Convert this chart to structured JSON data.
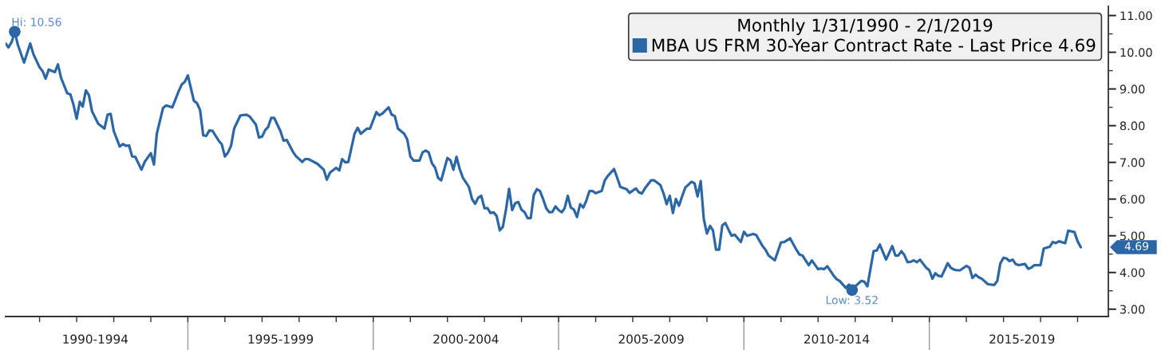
{
  "chart_data": {
    "type": "line",
    "legend_title": "Monthly 1/31/1990 - 2/1/2019",
    "legend": "top right",
    "line_style": "solid",
    "xlim": [
      "1990-01-31",
      "2019-10-31"
    ],
    "ylim": [
      2.8,
      11.25
    ],
    "xticks": [
      {
        "value": "1991",
        "label": null
      },
      {
        "value": "1992",
        "label": null
      },
      {
        "value": "1992-07-02",
        "label": "1990-1994"
      },
      {
        "value": "1993",
        "label": null
      },
      {
        "value": "1994",
        "label": null
      },
      {
        "value": "1995",
        "label": null
      },
      {
        "value": "1996",
        "label": null
      },
      {
        "value": "1997",
        "label": null
      },
      {
        "value": "1997-07-02",
        "label": "1995-1999"
      },
      {
        "value": "1998",
        "label": null
      },
      {
        "value": "1999",
        "label": null
      },
      {
        "value": "2000",
        "label": null
      },
      {
        "value": "2001",
        "label": null
      },
      {
        "value": "2002",
        "label": null
      },
      {
        "value": "2002-07-02",
        "label": "2000-2004"
      },
      {
        "value": "2003",
        "label": null
      },
      {
        "value": "2004",
        "label": null
      },
      {
        "value": "2005",
        "label": null
      },
      {
        "value": "2006",
        "label": null
      },
      {
        "value": "2007",
        "label": null
      },
      {
        "value": "2007-07-02",
        "label": "2005-2009"
      },
      {
        "value": "2008",
        "label": null
      },
      {
        "value": "2009",
        "label": null
      },
      {
        "value": "2010",
        "label": null
      },
      {
        "value": "2011",
        "label": null
      },
      {
        "value": "2012",
        "label": null
      },
      {
        "value": "2012-07-02",
        "label": "2010-2014"
      },
      {
        "value": "2013",
        "label": null
      },
      {
        "value": "2014",
        "label": null
      },
      {
        "value": "2015",
        "label": null
      },
      {
        "value": "2016",
        "label": null
      },
      {
        "value": "2017",
        "label": null
      },
      {
        "value": "2017-07-02",
        "label": "2015-2019"
      },
      {
        "value": "2018",
        "label": null
      },
      {
        "value": "2019",
        "label": null
      }
    ],
    "yticks": [
      {
        "value": 3,
        "label": "3.00"
      },
      {
        "value": 3.5,
        "label": null
      },
      {
        "value": 4,
        "label": "4.00"
      },
      {
        "value": 4.5,
        "label": null
      },
      {
        "value": 5,
        "label": "5.00"
      },
      {
        "value": 5.5,
        "label": null
      },
      {
        "value": 6,
        "label": "6.00"
      },
      {
        "value": 6.5,
        "label": null
      },
      {
        "value": 7,
        "label": "7.00"
      },
      {
        "value": 7.5,
        "label": null
      },
      {
        "value": 8,
        "label": "8.00"
      },
      {
        "value": 8.5,
        "label": null
      },
      {
        "value": 9,
        "label": "9.00"
      },
      {
        "value": 9.5,
        "label": null
      },
      {
        "value": 10,
        "label": "10.00"
      },
      {
        "value": 10.5,
        "label": null
      },
      {
        "value": 11,
        "label": "11.00"
      }
    ],
    "annotations": [
      {
        "text": "Hi: 10.56",
        "x": "1990-05",
        "y": 10.56
      },
      {
        "text": "Low: 3.52",
        "x": "2012-12",
        "y": 3.52
      },
      "4.69"
    ],
    "series": [
      {
        "name": "MBA US FRM 30-Year Contract Rate - Last Price 4.69",
        "color": "#2b67a5",
        "x": [
          "1990-01-31",
          "1990-03",
          "1990-04",
          "1990-05",
          "1990-06",
          "1990-08",
          "1990-10",
          "1990-11",
          "1991-01",
          "1991-02",
          "1991-03",
          "1991-04",
          "1991-06",
          "1991-07",
          "1991-08",
          "1991-10",
          "1991-11",
          "1991-12",
          "1992-01",
          "1992-02",
          "1992-03",
          "1992-04",
          "1992-05",
          "1992-06",
          "1992-08",
          "1992-10",
          "1992-11",
          "1992-12",
          "1993-01",
          "1993-03",
          "1993-04",
          "1993-05",
          "1993-06",
          "1993-07",
          "1993-08",
          "1993-10",
          "1993-11",
          "1994-01",
          "1994-02",
          "1994-03",
          "1994-05",
          "1994-06",
          "1994-08",
          "1994-10",
          "1994-11",
          "1994-12",
          "1995-01",
          "1995-03",
          "1995-04",
          "1995-05",
          "1995-06",
          "1995-07",
          "1995-08",
          "1995-09",
          "1995-11",
          "1995-12",
          "1996-01",
          "1996-02",
          "1996-03",
          "1996-04",
          "1996-06",
          "1996-08",
          "1996-09",
          "1996-11",
          "1996-12",
          "1997-01",
          "1997-02",
          "1997-03",
          "1997-04",
          "1997-05",
          "1997-07",
          "1997-08",
          "1997-09",
          "1997-11",
          "1997-12",
          "1998-02",
          "1998-03",
          "1998-04",
          "1998-05",
          "1998-07",
          "1998-09",
          "1998-10",
          "1998-11",
          "1999-01",
          "1999-02",
          "1999-03",
          "1999-04",
          "1999-05",
          "1999-07",
          "1999-08",
          "1999-09",
          "1999-11",
          "1999-12",
          "2000-02",
          "2000-03",
          "2000-04",
          "2000-06",
          "2000-07",
          "2000-08",
          "2000-09",
          "2000-11",
          "2000-12",
          "2001-01",
          "2001-02",
          "2001-04",
          "2001-05",
          "2001-06",
          "2001-07",
          "2001-08",
          "2001-09",
          "2001-10",
          "2001-11",
          "2002-01",
          "2002-02",
          "2002-03",
          "2002-04",
          "2002-05",
          "2002-06",
          "2002-08",
          "2002-09",
          "2002-10",
          "2002-11",
          "2002-12",
          "2003-01",
          "2003-02",
          "2003-03",
          "2003-04",
          "2003-05",
          "2003-06",
          "2003-07",
          "2003-08",
          "2003-09",
          "2003-10",
          "2003-11",
          "2003-12",
          "2004-01",
          "2004-02",
          "2004-03",
          "2004-04",
          "2004-05",
          "2004-06",
          "2004-07",
          "2004-08",
          "2004-09",
          "2004-10",
          "2004-11",
          "2004-12",
          "2005-01",
          "2005-02",
          "2005-03",
          "2005-04",
          "2005-05",
          "2005-06",
          "2005-07",
          "2005-08",
          "2005-09",
          "2005-10",
          "2005-11",
          "2005-12",
          "2006-01",
          "2006-03",
          "2006-04",
          "2006-05",
          "2006-07",
          "2006-08",
          "2006-09",
          "2006-11",
          "2006-12",
          "2007-02",
          "2007-03",
          "2007-04",
          "2007-05",
          "2007-07",
          "2007-08",
          "2007-10",
          "2007-11",
          "2007-12",
          "2008-01",
          "2008-02",
          "2008-03",
          "2008-04",
          "2008-05",
          "2008-06",
          "2008-08",
          "2008-09",
          "2008-10",
          "2008-11",
          "2008-12",
          "2009-01",
          "2009-02",
          "2009-03",
          "2009-04",
          "2009-05",
          "2009-06",
          "2009-07",
          "2009-08",
          "2009-09",
          "2009-10",
          "2009-12",
          "2010-01",
          "2010-02",
          "2010-04",
          "2010-05",
          "2010-07",
          "2010-08",
          "2010-09",
          "2010-11",
          "2011-01",
          "2011-02",
          "2011-04",
          "2011-06",
          "2011-07",
          "2011-08",
          "2011-10",
          "2011-11",
          "2012-01",
          "2012-02",
          "2012-03",
          "2012-04",
          "2012-06",
          "2012-07",
          "2012-08",
          "2012-10",
          "2012-11",
          "2012-12",
          "2013-01",
          "2013-03",
          "2013-04",
          "2013-05",
          "2013-07",
          "2013-08",
          "2013-09",
          "2013-11",
          "2014-01",
          "2014-02",
          "2014-03",
          "2014-04",
          "2014-05",
          "2014-06",
          "2014-07",
          "2014-08",
          "2014-09",
          "2014-10",
          "2014-12",
          "2015-01",
          "2015-02",
          "2015-03",
          "2015-04",
          "2015-05",
          "2015-07",
          "2015-08",
          "2015-09",
          "2015-10",
          "2015-11",
          "2016-01",
          "2016-02",
          "2016-03",
          "2016-04",
          "2016-05",
          "2016-06",
          "2016-08",
          "2016-10",
          "2016-11",
          "2016-12",
          "2017-01",
          "2017-02",
          "2017-03",
          "2017-04",
          "2017-05",
          "2017-06",
          "2017-08",
          "2017-09",
          "2017-10",
          "2017-11",
          "2018-01",
          "2018-02",
          "2018-04",
          "2018-05",
          "2018-06",
          "2018-07",
          "2018-09",
          "2018-10",
          "2018-12",
          "2019-01",
          "2019-02-01"
        ],
        "values": [
          10.24,
          10.13,
          10.28,
          10.56,
          10.2,
          9.72,
          10.24,
          9.95,
          9.59,
          9.48,
          9.28,
          9.53,
          9.46,
          9.67,
          9.3,
          8.88,
          8.85,
          8.57,
          8.19,
          8.65,
          8.52,
          8.96,
          8.83,
          8.39,
          8.05,
          7.92,
          8.3,
          8.32,
          7.85,
          7.43,
          7.5,
          7.45,
          7.46,
          7.16,
          7.15,
          6.8,
          7.01,
          7.25,
          6.94,
          7.78,
          8.48,
          8.55,
          8.5,
          8.93,
          9.12,
          9.19,
          9.37,
          8.68,
          8.61,
          8.43,
          7.74,
          7.72,
          7.87,
          7.86,
          7.59,
          7.49,
          7.16,
          7.27,
          7.45,
          7.92,
          8.28,
          8.3,
          8.25,
          8.03,
          7.68,
          7.7,
          7.88,
          7.96,
          8.21,
          8.21,
          7.85,
          7.59,
          7.61,
          7.29,
          7.17,
          7.01,
          7.09,
          7.09,
          7.05,
          6.96,
          6.8,
          6.53,
          6.72,
          6.85,
          6.78,
          7.09,
          7.0,
          7.01,
          7.78,
          7.94,
          7.78,
          7.92,
          7.92,
          8.37,
          8.28,
          8.33,
          8.5,
          8.3,
          8.26,
          7.92,
          7.78,
          7.63,
          7.16,
          7.05,
          7.05,
          7.27,
          7.32,
          7.27,
          6.98,
          6.86,
          6.58,
          6.51,
          7.12,
          7.05,
          6.8,
          7.15,
          6.83,
          6.59,
          6.33,
          6.0,
          5.87,
          6.04,
          6.09,
          5.75,
          5.75,
          5.62,
          5.64,
          5.54,
          5.15,
          5.24,
          5.71,
          6.28,
          5.7,
          5.89,
          5.92,
          5.71,
          5.64,
          5.48,
          5.48,
          6.11,
          6.27,
          6.22,
          6.0,
          5.75,
          5.64,
          5.65,
          5.8,
          5.7,
          5.64,
          5.75,
          6.09,
          5.77,
          5.71,
          5.51,
          5.86,
          5.77,
          5.96,
          6.22,
          6.22,
          6.16,
          6.22,
          6.51,
          6.63,
          6.82,
          6.58,
          6.33,
          6.27,
          6.17,
          6.29,
          6.19,
          6.15,
          6.29,
          6.51,
          6.51,
          6.38,
          6.15,
          5.86,
          6.09,
          5.62,
          6.0,
          5.82,
          6.07,
          6.31,
          6.47,
          6.43,
          6.07,
          6.49,
          5.46,
          5.06,
          5.27,
          5.15,
          4.62,
          4.62,
          5.28,
          5.35,
          5.17,
          5.0,
          5.03,
          4.83,
          5.11,
          5.0,
          5.05,
          5.02,
          4.73,
          4.62,
          4.46,
          4.33,
          4.82,
          4.83,
          4.93,
          4.62,
          4.49,
          4.46,
          4.2,
          4.33,
          4.09,
          4.11,
          4.09,
          4.17,
          3.92,
          3.82,
          3.77,
          3.58,
          3.67,
          3.52,
          3.62,
          3.77,
          3.75,
          3.62,
          4.58,
          4.6,
          4.76,
          4.35,
          4.72,
          4.46,
          4.46,
          4.58,
          4.47,
          4.28,
          4.29,
          4.33,
          4.28,
          4.35,
          4.13,
          4.06,
          3.83,
          3.98,
          3.91,
          3.89,
          4.25,
          4.13,
          4.08,
          4.06,
          4.06,
          4.18,
          4.13,
          3.85,
          3.94,
          3.87,
          3.83,
          3.68,
          3.66,
          3.77,
          4.25,
          4.4,
          4.38,
          4.31,
          4.35,
          4.23,
          4.2,
          4.23,
          4.1,
          4.13,
          4.2,
          4.2,
          4.65,
          4.7,
          4.83,
          4.8,
          4.85,
          4.8,
          5.14,
          5.1,
          4.85,
          4.69
        ]
      },
      {
        "type": "scatter",
        "color": "#2b67a5",
        "marker": "circle",
        "x": [
          "1990-05",
          "2012-12"
        ],
        "values": [
          10.56,
          3.52
        ]
      }
    ]
  }
}
